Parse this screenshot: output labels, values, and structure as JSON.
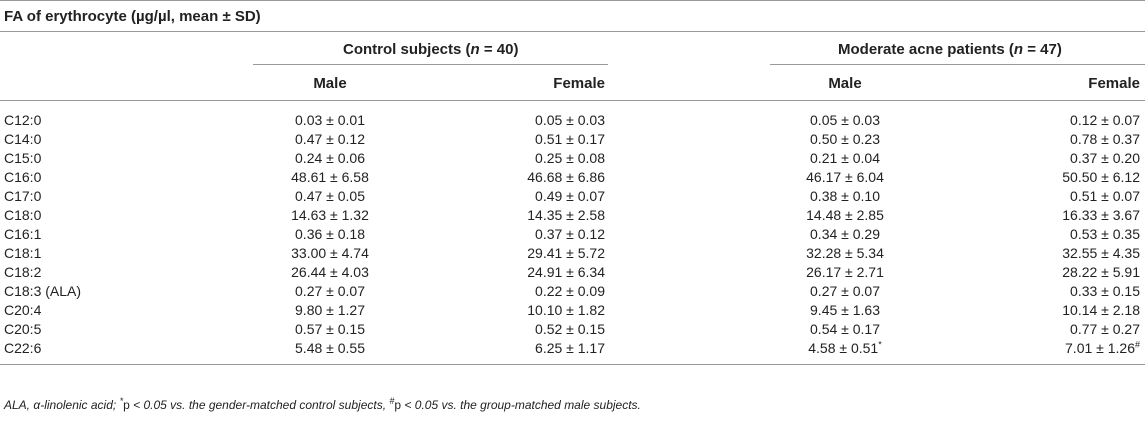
{
  "table": {
    "title": "FA of erythrocyte (µg/µl, mean ± SD)",
    "groups": {
      "control": {
        "label": "Control subjects (",
        "n_letter": "n",
        "n_value": " = 40)"
      },
      "acne": {
        "label": "Moderate acne patients (",
        "n_letter": "n",
        "n_value": " = 47)"
      }
    },
    "subheaders": [
      "Male",
      "Female",
      "Male",
      "Female"
    ],
    "rows": [
      {
        "fa": "C12:0",
        "control_male": "0.03 ± 0.01",
        "control_female": "0.05 ± 0.03",
        "acne_male": "0.05 ± 0.03",
        "acne_male_mark": "",
        "acne_female": "0.12 ± 0.07",
        "acne_female_mark": ""
      },
      {
        "fa": "C14:0",
        "control_male": "0.47 ± 0.12",
        "control_female": "0.51 ± 0.17",
        "acne_male": "0.50 ± 0.23",
        "acne_male_mark": "",
        "acne_female": "0.78 ± 0.37",
        "acne_female_mark": ""
      },
      {
        "fa": "C15:0",
        "control_male": "0.24 ± 0.06",
        "control_female": "0.25 ± 0.08",
        "acne_male": "0.21 ± 0.04",
        "acne_male_mark": "",
        "acne_female": "0.37 ± 0.20",
        "acne_female_mark": ""
      },
      {
        "fa": "C16:0",
        "control_male": "48.61 ± 6.58",
        "control_female": "46.68 ± 6.86",
        "acne_male": "46.17 ± 6.04",
        "acne_male_mark": "",
        "acne_female": "50.50 ± 6.12",
        "acne_female_mark": ""
      },
      {
        "fa": "C17:0",
        "control_male": "0.47 ± 0.05",
        "control_female": "0.49 ± 0.07",
        "acne_male": "0.38 ± 0.10",
        "acne_male_mark": "",
        "acne_female": "0.51 ± 0.07",
        "acne_female_mark": ""
      },
      {
        "fa": "C18:0",
        "control_male": "14.63 ± 1.32",
        "control_female": "14.35 ± 2.58",
        "acne_male": "14.48 ± 2.85",
        "acne_male_mark": "",
        "acne_female": "16.33 ± 3.67",
        "acne_female_mark": ""
      },
      {
        "fa": "C16:1",
        "control_male": "0.36 ± 0.18",
        "control_female": "0.37 ± 0.12",
        "acne_male": "0.34 ± 0.29",
        "acne_male_mark": "",
        "acne_female": "0.53 ± 0.35",
        "acne_female_mark": ""
      },
      {
        "fa": "C18:1",
        "control_male": "33.00 ± 4.74",
        "control_female": "29.41 ± 5.72",
        "acne_male": "32.28 ± 5.34",
        "acne_male_mark": "",
        "acne_female": "32.55 ± 4.35",
        "acne_female_mark": ""
      },
      {
        "fa": "C18:2",
        "control_male": "26.44 ± 4.03",
        "control_female": "24.91 ± 6.34",
        "acne_male": "26.17 ± 2.71",
        "acne_male_mark": "",
        "acne_female": "28.22 ± 5.91",
        "acne_female_mark": ""
      },
      {
        "fa": "C18:3 (ALA)",
        "control_male": "0.27 ± 0.07",
        "control_female": "0.22 ± 0.09",
        "acne_male": "0.27 ± 0.07",
        "acne_male_mark": "",
        "acne_female": "0.33 ± 0.15",
        "acne_female_mark": ""
      },
      {
        "fa": "C20:4",
        "control_male": "9.80 ± 1.27",
        "control_female": "10.10 ± 1.82",
        "acne_male": "9.45 ± 1.63",
        "acne_male_mark": "",
        "acne_female": "10.14 ± 2.18",
        "acne_female_mark": ""
      },
      {
        "fa": "C20:5",
        "control_male": "0.57 ± 0.15",
        "control_female": "0.52 ± 0.15",
        "acne_male": "0.54 ± 0.17",
        "acne_male_mark": "",
        "acne_female": "0.77 ± 0.27",
        "acne_female_mark": ""
      },
      {
        "fa": "C22:6",
        "control_male": "5.48 ± 0.55",
        "control_female": "6.25 ± 1.17",
        "acne_male": "4.58 ± 0.51",
        "acne_male_mark": "*",
        "acne_female": "7.01 ± 1.26",
        "acne_female_mark": "#"
      }
    ],
    "footnote": {
      "abbr": "ALA, α-linolenic acid;",
      "star_mark": "*",
      "star_p": "p",
      "star_text": " < 0.05 vs. the gender-matched control subjects,",
      "hash_mark": "#",
      "hash_p": "p",
      "hash_text": " < 0.05 vs. the group-matched male subjects."
    }
  }
}
